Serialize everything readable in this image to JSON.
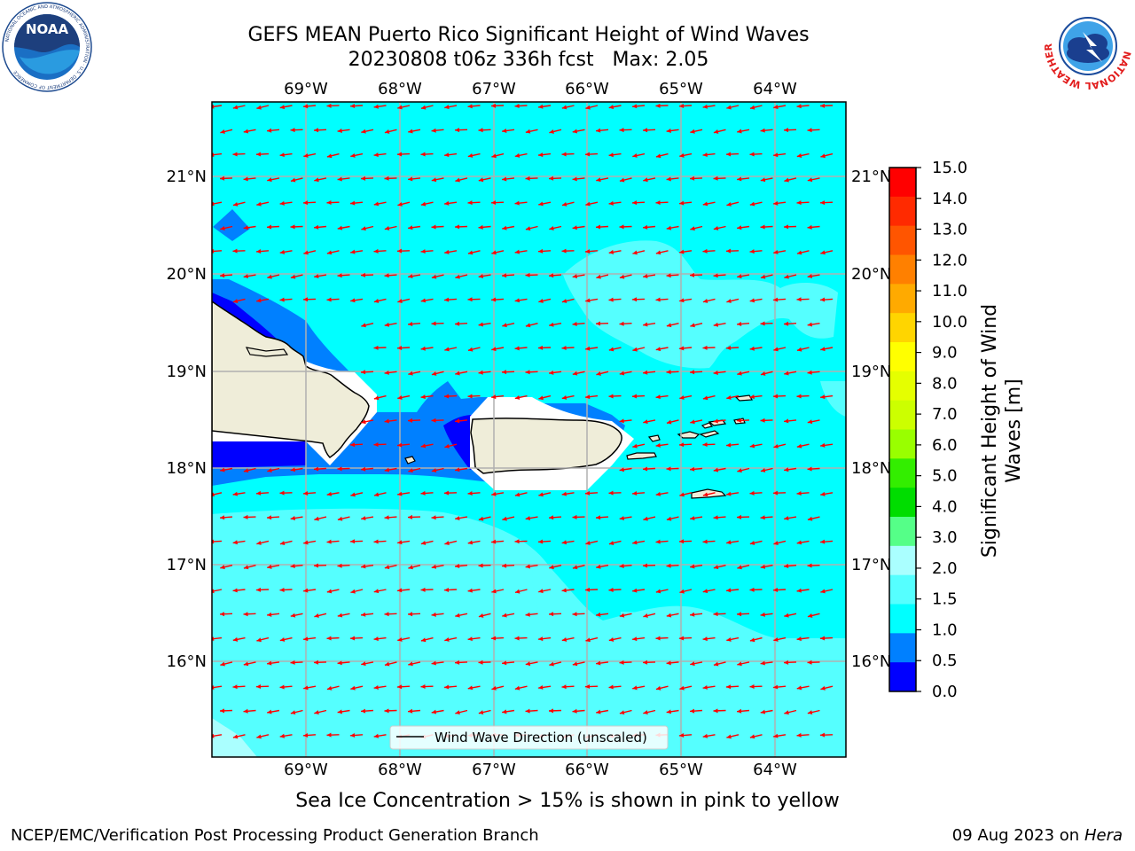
{
  "header": {
    "title_line1": "GEFS MEAN Puerto Rico Significant Height of Wind Waves",
    "title_line2": "20230808 t06z 336h fcst   Max: 2.05"
  },
  "logos": {
    "left": {
      "name": "noaa-logo",
      "text": "NOAA",
      "ring_text": "NATIONAL OCEANIC AND ATMOSPHERIC ADMINISTRATION · U.S. DEPARTMENT OF COMMERCE"
    },
    "right": {
      "name": "nws-logo",
      "ring_text": "NATIONAL WEATHER SERVICE"
    }
  },
  "map": {
    "lon_ticks": [
      "69°W",
      "68°W",
      "67°W",
      "66°W",
      "65°W",
      "64°W"
    ],
    "lat_ticks": [
      "21°N",
      "20°N",
      "19°N",
      "18°N",
      "17°N",
      "16°N"
    ],
    "extent": {
      "lon": [
        -70.0,
        -63.25
      ],
      "lat": [
        15.0,
        21.75
      ]
    },
    "legend_label": "Wind Wave Direction (unscaled)",
    "ocean_color": "#00ffff",
    "land_color": "#efedd9",
    "arrow_color": "#ff0000"
  },
  "colorbar": {
    "label_line1": "Significant Height of Wind",
    "label_line2": "Waves [m]",
    "ticks": [
      "15.0",
      "14.0",
      "13.0",
      "12.0",
      "11.0",
      "10.0",
      "9.0",
      "8.0",
      "7.0",
      "6.0",
      "5.0",
      "4.0",
      "3.0",
      "2.0",
      "1.5",
      "1.0",
      "0.5",
      "0.0"
    ],
    "colors": [
      "#ff0000",
      "#ff2a00",
      "#ff5500",
      "#ff8000",
      "#ffaa00",
      "#ffd500",
      "#ffff00",
      "#e5ff00",
      "#ccff00",
      "#99ff00",
      "#33ee00",
      "#00dd00",
      "#55ff88",
      "#aaffff",
      "#55ffff",
      "#00ffff",
      "#0080ff",
      "#0000ff"
    ]
  },
  "footer": {
    "caption": "Sea Ice Concentration > 15% is shown in pink to yellow",
    "left": "NCEP/EMC/Verification Post Processing Product Generation Branch",
    "right_date": "09 Aug 2023 on",
    "right_host": "Hera"
  }
}
